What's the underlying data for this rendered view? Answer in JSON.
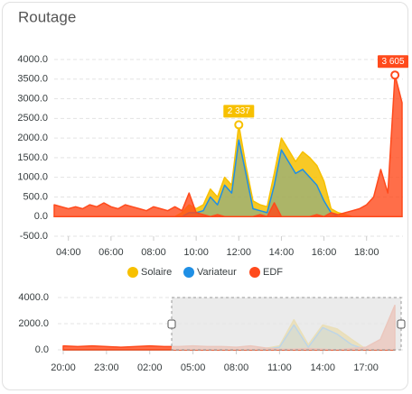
{
  "title": "Routage",
  "chart_data": [
    {
      "type": "area",
      "x": [
        "03:20",
        "03:40",
        "04:00",
        "04:20",
        "04:40",
        "05:00",
        "05:20",
        "05:40",
        "06:00",
        "06:20",
        "06:40",
        "07:00",
        "07:20",
        "07:40",
        "08:00",
        "08:20",
        "08:40",
        "09:00",
        "09:20",
        "09:40",
        "10:00",
        "10:20",
        "10:40",
        "11:00",
        "11:20",
        "11:40",
        "12:00",
        "12:20",
        "12:40",
        "13:00",
        "13:20",
        "13:40",
        "14:00",
        "14:20",
        "14:40",
        "15:00",
        "15:20",
        "15:40",
        "16:00",
        "16:20",
        "16:40",
        "17:00",
        "17:20",
        "17:40",
        "18:00",
        "18:20",
        "18:40",
        "19:00",
        "19:20",
        "19:40"
      ],
      "xticks": [
        "04:00",
        "06:00",
        "08:00",
        "10:00",
        "12:00",
        "14:00",
        "16:00",
        "18:00"
      ],
      "ylim": [
        -500,
        4000
      ],
      "yticks": [
        {
          "value": 4000,
          "label": "4000.0"
        },
        {
          "value": 3500,
          "label": "3500.0"
        },
        {
          "value": 3000,
          "label": "3000.0"
        },
        {
          "value": 2500,
          "label": "2500.0"
        },
        {
          "value": 2000,
          "label": "2000.0"
        },
        {
          "value": 1500,
          "label": "1500.0"
        },
        {
          "value": 1000,
          "label": "1000.0"
        },
        {
          "value": 500,
          "label": "500.0"
        },
        {
          "value": 0,
          "label": "0.0"
        },
        {
          "value": -500,
          "label": "-500.0"
        }
      ],
      "grid": true,
      "series": [
        {
          "name": "Solaire",
          "color": "#f7c000",
          "values": [
            0,
            0,
            0,
            0,
            0,
            0,
            0,
            0,
            0,
            0,
            0,
            0,
            0,
            0,
            0,
            0,
            0,
            0,
            100,
            300,
            200,
            300,
            700,
            500,
            1000,
            800,
            2337,
            1300,
            400,
            300,
            250,
            1100,
            2000,
            1700,
            1400,
            1650,
            1500,
            1300,
            900,
            200,
            100,
            50,
            0,
            0,
            0,
            0,
            0,
            0,
            0,
            0
          ]
        },
        {
          "name": "Variateur",
          "color": "#1f8fe5",
          "values": [
            0,
            0,
            0,
            0,
            0,
            0,
            0,
            0,
            0,
            0,
            0,
            0,
            0,
            0,
            0,
            0,
            0,
            0,
            0,
            100,
            100,
            150,
            500,
            300,
            800,
            600,
            1950,
            1100,
            200,
            150,
            100,
            800,
            1700,
            1400,
            1100,
            1200,
            1000,
            800,
            400,
            100,
            0,
            0,
            0,
            0,
            0,
            0,
            0,
            0,
            0,
            0
          ]
        },
        {
          "name": "EDF",
          "color": "#ff4a1c",
          "values": [
            300,
            250,
            200,
            250,
            200,
            300,
            250,
            350,
            250,
            200,
            300,
            250,
            200,
            150,
            250,
            200,
            150,
            250,
            150,
            600,
            100,
            50,
            0,
            50,
            0,
            0,
            0,
            0,
            0,
            50,
            0,
            350,
            0,
            0,
            0,
            0,
            0,
            50,
            0,
            100,
            50,
            100,
            150,
            200,
            300,
            500,
            1200,
            600,
            3605,
            2900
          ]
        }
      ],
      "annotations": [
        {
          "x": "12:00",
          "series": "Solaire",
          "value": 2337,
          "label": "2 337"
        },
        {
          "x": "19:20",
          "series": "EDF",
          "value": 3605,
          "label": "3 605"
        }
      ],
      "legend": "bottom"
    },
    {
      "type": "area",
      "x": [
        "20:00",
        "21:00",
        "22:00",
        "23:00",
        "00:00",
        "01:00",
        "02:00",
        "03:00",
        "04:00",
        "05:00",
        "06:00",
        "07:00",
        "08:00",
        "09:00",
        "10:00",
        "11:00",
        "12:00",
        "13:00",
        "14:00",
        "15:00",
        "16:00",
        "17:00",
        "18:00",
        "19:00"
      ],
      "xticks": [
        "20:00",
        "23:00",
        "02:00",
        "05:00",
        "08:00",
        "11:00",
        "14:00",
        "17:00"
      ],
      "ylim": [
        0,
        4000
      ],
      "yticks": [
        {
          "value": 4000,
          "label": "4000.0"
        },
        {
          "value": 2000,
          "label": "2000.0"
        },
        {
          "value": 0,
          "label": "0.0"
        }
      ],
      "grid": true,
      "series": [
        {
          "name": "Solaire",
          "color": "#f7c000",
          "values": [
            0,
            0,
            0,
            0,
            0,
            0,
            0,
            0,
            0,
            0,
            0,
            0,
            0,
            0,
            100,
            300,
            2300,
            400,
            1900,
            1600,
            800,
            50,
            0,
            0
          ]
        },
        {
          "name": "Variateur",
          "color": "#1f8fe5",
          "values": [
            0,
            0,
            0,
            0,
            0,
            0,
            0,
            0,
            0,
            0,
            0,
            0,
            0,
            0,
            50,
            200,
            1900,
            200,
            1700,
            1200,
            400,
            0,
            0,
            0
          ]
        },
        {
          "name": "EDF",
          "color": "#ff4a1c",
          "values": [
            300,
            250,
            300,
            250,
            200,
            250,
            300,
            250,
            250,
            300,
            250,
            250,
            200,
            300,
            150,
            50,
            50,
            100,
            50,
            0,
            100,
            200,
            800,
            3400
          ]
        }
      ]
    }
  ]
}
